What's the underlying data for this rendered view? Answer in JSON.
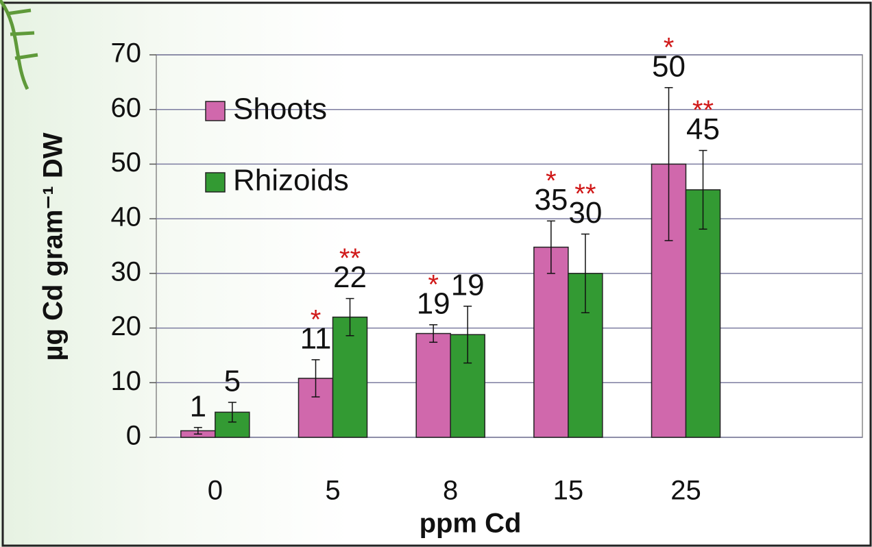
{
  "chart_data": {
    "type": "bar",
    "x_label": "ppm Cd",
    "y_label": "µg Cd gram⁻¹ DW",
    "categories": [
      "0",
      "5",
      "8",
      "15",
      "25",
      null
    ],
    "series": [
      {
        "name": "Shoots",
        "color": "#d068ac",
        "values": [
          1.2,
          10.8,
          19,
          34.8,
          50,
          null
        ],
        "value_labels": [
          "1",
          "11",
          "19",
          "35",
          "50",
          null
        ],
        "errors": [
          0.6,
          3.4,
          1.6,
          4.8,
          14,
          null
        ],
        "significance": [
          null,
          "*",
          "*",
          "*",
          "*",
          null
        ]
      },
      {
        "name": "Rhizoids",
        "color": "#339a33",
        "values": [
          4.6,
          22,
          18.8,
          30,
          45.3,
          null
        ],
        "value_labels": [
          "5",
          "22",
          "19",
          "30",
          "45",
          null
        ],
        "errors": [
          1.8,
          3.4,
          5.2,
          7.2,
          7.2,
          null
        ],
        "significance": [
          null,
          "**",
          null,
          "**",
          "**",
          null
        ]
      }
    ],
    "ylim": [
      0,
      70
    ],
    "yticks": [
      0,
      10,
      20,
      30,
      40,
      50,
      60,
      70
    ],
    "grid": true,
    "legend": "upper left"
  }
}
